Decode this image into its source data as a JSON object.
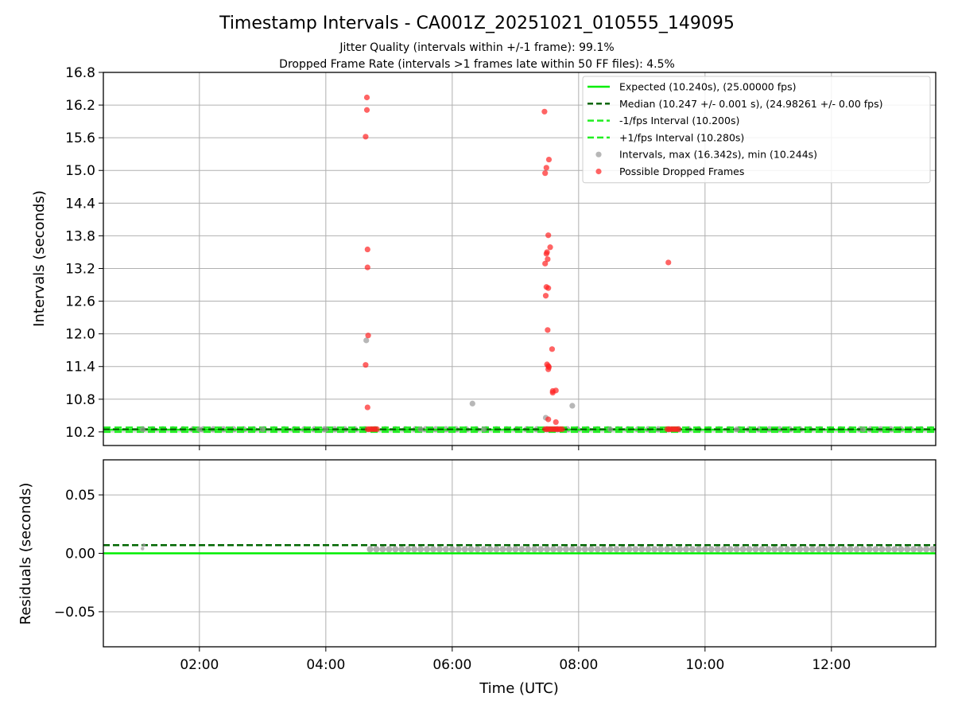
{
  "figure": {
    "title": "Timestamp Intervals - CA001Z_20251021_010555_149095",
    "subtitle_jitter": "Jitter Quality (intervals within +/-1 frame): 99.1%",
    "subtitle_dropped": "Dropped Frame Rate (intervals >1 frames late within 50 FF files): 4.5%"
  },
  "colors": {
    "expected": "#00ee00",
    "median": "#006600",
    "interval_band": "#22ee22",
    "intervals_gray": "#999999",
    "dropped_red": "#ff2222",
    "grid": "#b0b0b0"
  },
  "chart_data": [
    {
      "type": "scatter",
      "panel": "intervals",
      "ylabel": "Intervals (seconds)",
      "xlabel": "",
      "x_unit": "hours UTC",
      "xlim": [
        0.48,
        13.65
      ],
      "ylim": [
        9.95,
        16.8
      ],
      "yticks": [
        10.2,
        10.8,
        11.4,
        12.0,
        12.6,
        13.2,
        13.8,
        14.4,
        15.0,
        15.6,
        16.2,
        16.8
      ],
      "ytick_labels": [
        "10.2",
        "10.8",
        "11.4",
        "12.0",
        "12.6",
        "13.2",
        "13.8",
        "14.4",
        "15.0",
        "15.6",
        "16.2",
        "16.8"
      ],
      "xticks": [
        2,
        4,
        6,
        8,
        10,
        12
      ],
      "grid": true,
      "lines": [
        {
          "name": "Expected (10.240s), (25.00000 fps)",
          "y": 10.24,
          "style": "solid",
          "color_key": "expected"
        },
        {
          "name": "Median (10.247 +/- 0.001 s), (24.98261 +/- 0.00 fps)",
          "y": 10.247,
          "style": "dashed",
          "color_key": "median"
        },
        {
          "name": "-1/fps Interval (10.200s)",
          "y": 10.2,
          "style": "dashed",
          "color_key": "interval_band"
        },
        {
          "name": "+1/fps Interval (10.280s)",
          "y": 10.28,
          "style": "dashed",
          "color_key": "interval_band"
        }
      ],
      "series": [
        {
          "name": "Intervals, max (16.342s), min (10.244s)",
          "color_key": "intervals_gray",
          "points": [
            [
              4.64,
              11.88
            ],
            [
              6.32,
              10.72
            ],
            [
              7.48,
              10.46
            ],
            [
              7.9,
              10.68
            ],
            [
              1.1,
              10.244
            ],
            [
              2.0,
              10.247
            ],
            [
              3.0,
              10.247
            ],
            [
              4.0,
              10.247
            ],
            [
              5.5,
              10.247
            ],
            [
              6.5,
              10.247
            ],
            [
              8.5,
              10.247
            ],
            [
              10.5,
              10.247
            ],
            [
              12.5,
              10.247
            ]
          ],
          "band": {
            "x_start": 1.1,
            "x_end": 13.65,
            "y": 10.247,
            "step": 0.16
          }
        },
        {
          "name": "Possible Dropped Frames",
          "color_key": "dropped_red",
          "points": [
            [
              4.65,
              16.34
            ],
            [
              4.65,
              16.11
            ],
            [
              4.63,
              15.62
            ],
            [
              4.66,
              13.55
            ],
            [
              4.66,
              13.22
            ],
            [
              4.67,
              11.97
            ],
            [
              4.63,
              11.43
            ],
            [
              4.66,
              10.65
            ],
            [
              4.66,
              10.25
            ],
            [
              4.69,
              10.25
            ],
            [
              4.72,
              10.25
            ],
            [
              4.75,
              10.25
            ],
            [
              4.78,
              10.25
            ],
            [
              4.81,
              10.25
            ],
            [
              7.46,
              16.08
            ],
            [
              7.53,
              15.2
            ],
            [
              7.49,
              15.05
            ],
            [
              7.47,
              14.95
            ],
            [
              7.52,
              13.81
            ],
            [
              7.55,
              13.59
            ],
            [
              7.5,
              13.5
            ],
            [
              7.49,
              13.47
            ],
            [
              7.51,
              13.37
            ],
            [
              7.47,
              13.29
            ],
            [
              7.49,
              12.86
            ],
            [
              7.52,
              12.84
            ],
            [
              7.48,
              12.7
            ],
            [
              7.51,
              12.07
            ],
            [
              7.58,
              11.72
            ],
            [
              7.5,
              11.44
            ],
            [
              7.52,
              11.41
            ],
            [
              7.53,
              11.39
            ],
            [
              7.52,
              11.35
            ],
            [
              7.59,
              10.95
            ],
            [
              7.64,
              10.96
            ],
            [
              7.59,
              10.92
            ],
            [
              7.52,
              10.43
            ],
            [
              7.64,
              10.38
            ],
            [
              7.47,
              10.25
            ],
            [
              7.5,
              10.25
            ],
            [
              7.53,
              10.25
            ],
            [
              7.56,
              10.25
            ],
            [
              7.59,
              10.25
            ],
            [
              7.62,
              10.25
            ],
            [
              7.65,
              10.25
            ],
            [
              7.68,
              10.25
            ],
            [
              7.71,
              10.25
            ],
            [
              7.74,
              10.25
            ],
            [
              9.42,
              13.31
            ],
            [
              9.4,
              10.25
            ],
            [
              9.43,
              10.25
            ],
            [
              9.46,
              10.25
            ],
            [
              9.49,
              10.25
            ],
            [
              9.52,
              10.25
            ],
            [
              9.55,
              10.25
            ],
            [
              9.58,
              10.25
            ]
          ]
        }
      ],
      "legend": {
        "location": "top-right",
        "entries": [
          {
            "label": "Expected (10.240s), (25.00000 fps)",
            "kind": "solid-line",
            "color_key": "expected"
          },
          {
            "label": "Median (10.247 +/- 0.001 s), (24.98261 +/- 0.00 fps)",
            "kind": "dashed-line",
            "color_key": "median"
          },
          {
            "label": "-1/fps Interval (10.200s)",
            "kind": "dashed-line",
            "color_key": "interval_band"
          },
          {
            "label": "+1/fps Interval (10.280s)",
            "kind": "dashed-line",
            "color_key": "interval_band"
          },
          {
            "label": "Intervals, max (16.342s), min (10.244s)",
            "kind": "marker",
            "color_key": "intervals_gray"
          },
          {
            "label": "Possible Dropped Frames",
            "kind": "marker",
            "color_key": "dropped_red"
          }
        ]
      }
    },
    {
      "type": "scatter",
      "panel": "residuals",
      "ylabel": "Residuals (seconds)",
      "xlabel": "Time (UTC)",
      "x_unit": "hours UTC",
      "xlim": [
        0.48,
        13.65
      ],
      "ylim": [
        -0.08,
        0.08
      ],
      "yticks": [
        -0.05,
        0.0,
        0.05
      ],
      "ytick_labels": [
        "−0.05",
        "0.00",
        "0.05"
      ],
      "xticks": [
        2,
        4,
        6,
        8,
        10,
        12
      ],
      "xtick_labels": [
        "02:00",
        "04:00",
        "06:00",
        "08:00",
        "10:00",
        "12:00"
      ],
      "grid": true,
      "lines": [
        {
          "name": "Expected",
          "y": 0.0,
          "style": "solid",
          "color_key": "expected"
        },
        {
          "name": "Median",
          "y": 0.007,
          "style": "dashed",
          "color_key": "median"
        }
      ],
      "series": [
        {
          "name": "Residuals",
          "color_key": "intervals_gray",
          "points": [
            [
              1.1,
              0.004
            ],
            [
              1.12,
              0.007
            ]
          ],
          "band": {
            "x_start": 4.7,
            "x_end": 13.65,
            "y": 0.0035,
            "step": 0.1
          }
        }
      ]
    }
  ]
}
